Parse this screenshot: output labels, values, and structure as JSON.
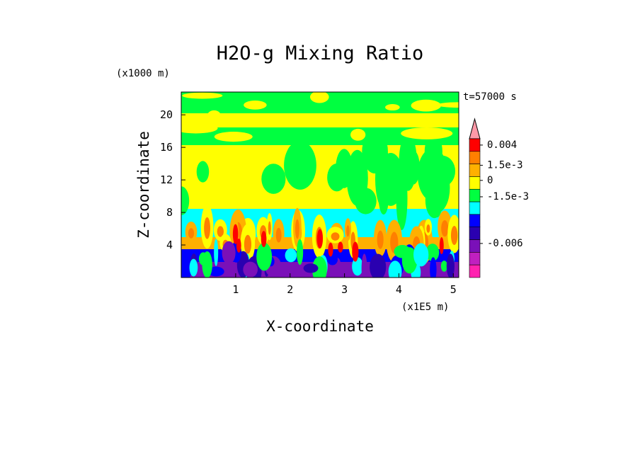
{
  "chart_data": {
    "type": "heatmap",
    "title": "H2O-g Mixing Ratio",
    "time_label": "t=57000 s",
    "xlabel": "X-coordinate",
    "ylabel": "Z-coordinate",
    "x_unit": "(x1E5 m)",
    "y_unit": "(x1000 m)",
    "xlim": [
      0,
      5.1
    ],
    "ylim": [
      0,
      22.8
    ],
    "x_ticks": [
      1,
      2,
      3,
      4,
      5
    ],
    "x_tick_labels": [
      "1",
      "2",
      "3",
      "4",
      "5"
    ],
    "y_ticks": [
      4,
      8,
      12,
      16,
      20
    ],
    "y_tick_labels": [
      "4",
      "8",
      "12",
      "16",
      "20"
    ],
    "colorbar": {
      "labels": [
        "0.004",
        "1.5e-3",
        "0",
        "-1.5e-3",
        "-0.006"
      ],
      "colors": [
        "#ff99a8",
        "#ff0000",
        "#ff7f00",
        "#ffb000",
        "#ffff00",
        "#00ff40",
        "#00ffff",
        "#0000ff",
        "#2a00b0",
        "#7a10b8",
        "#c020c0",
        "#ff22b0"
      ]
    }
  }
}
